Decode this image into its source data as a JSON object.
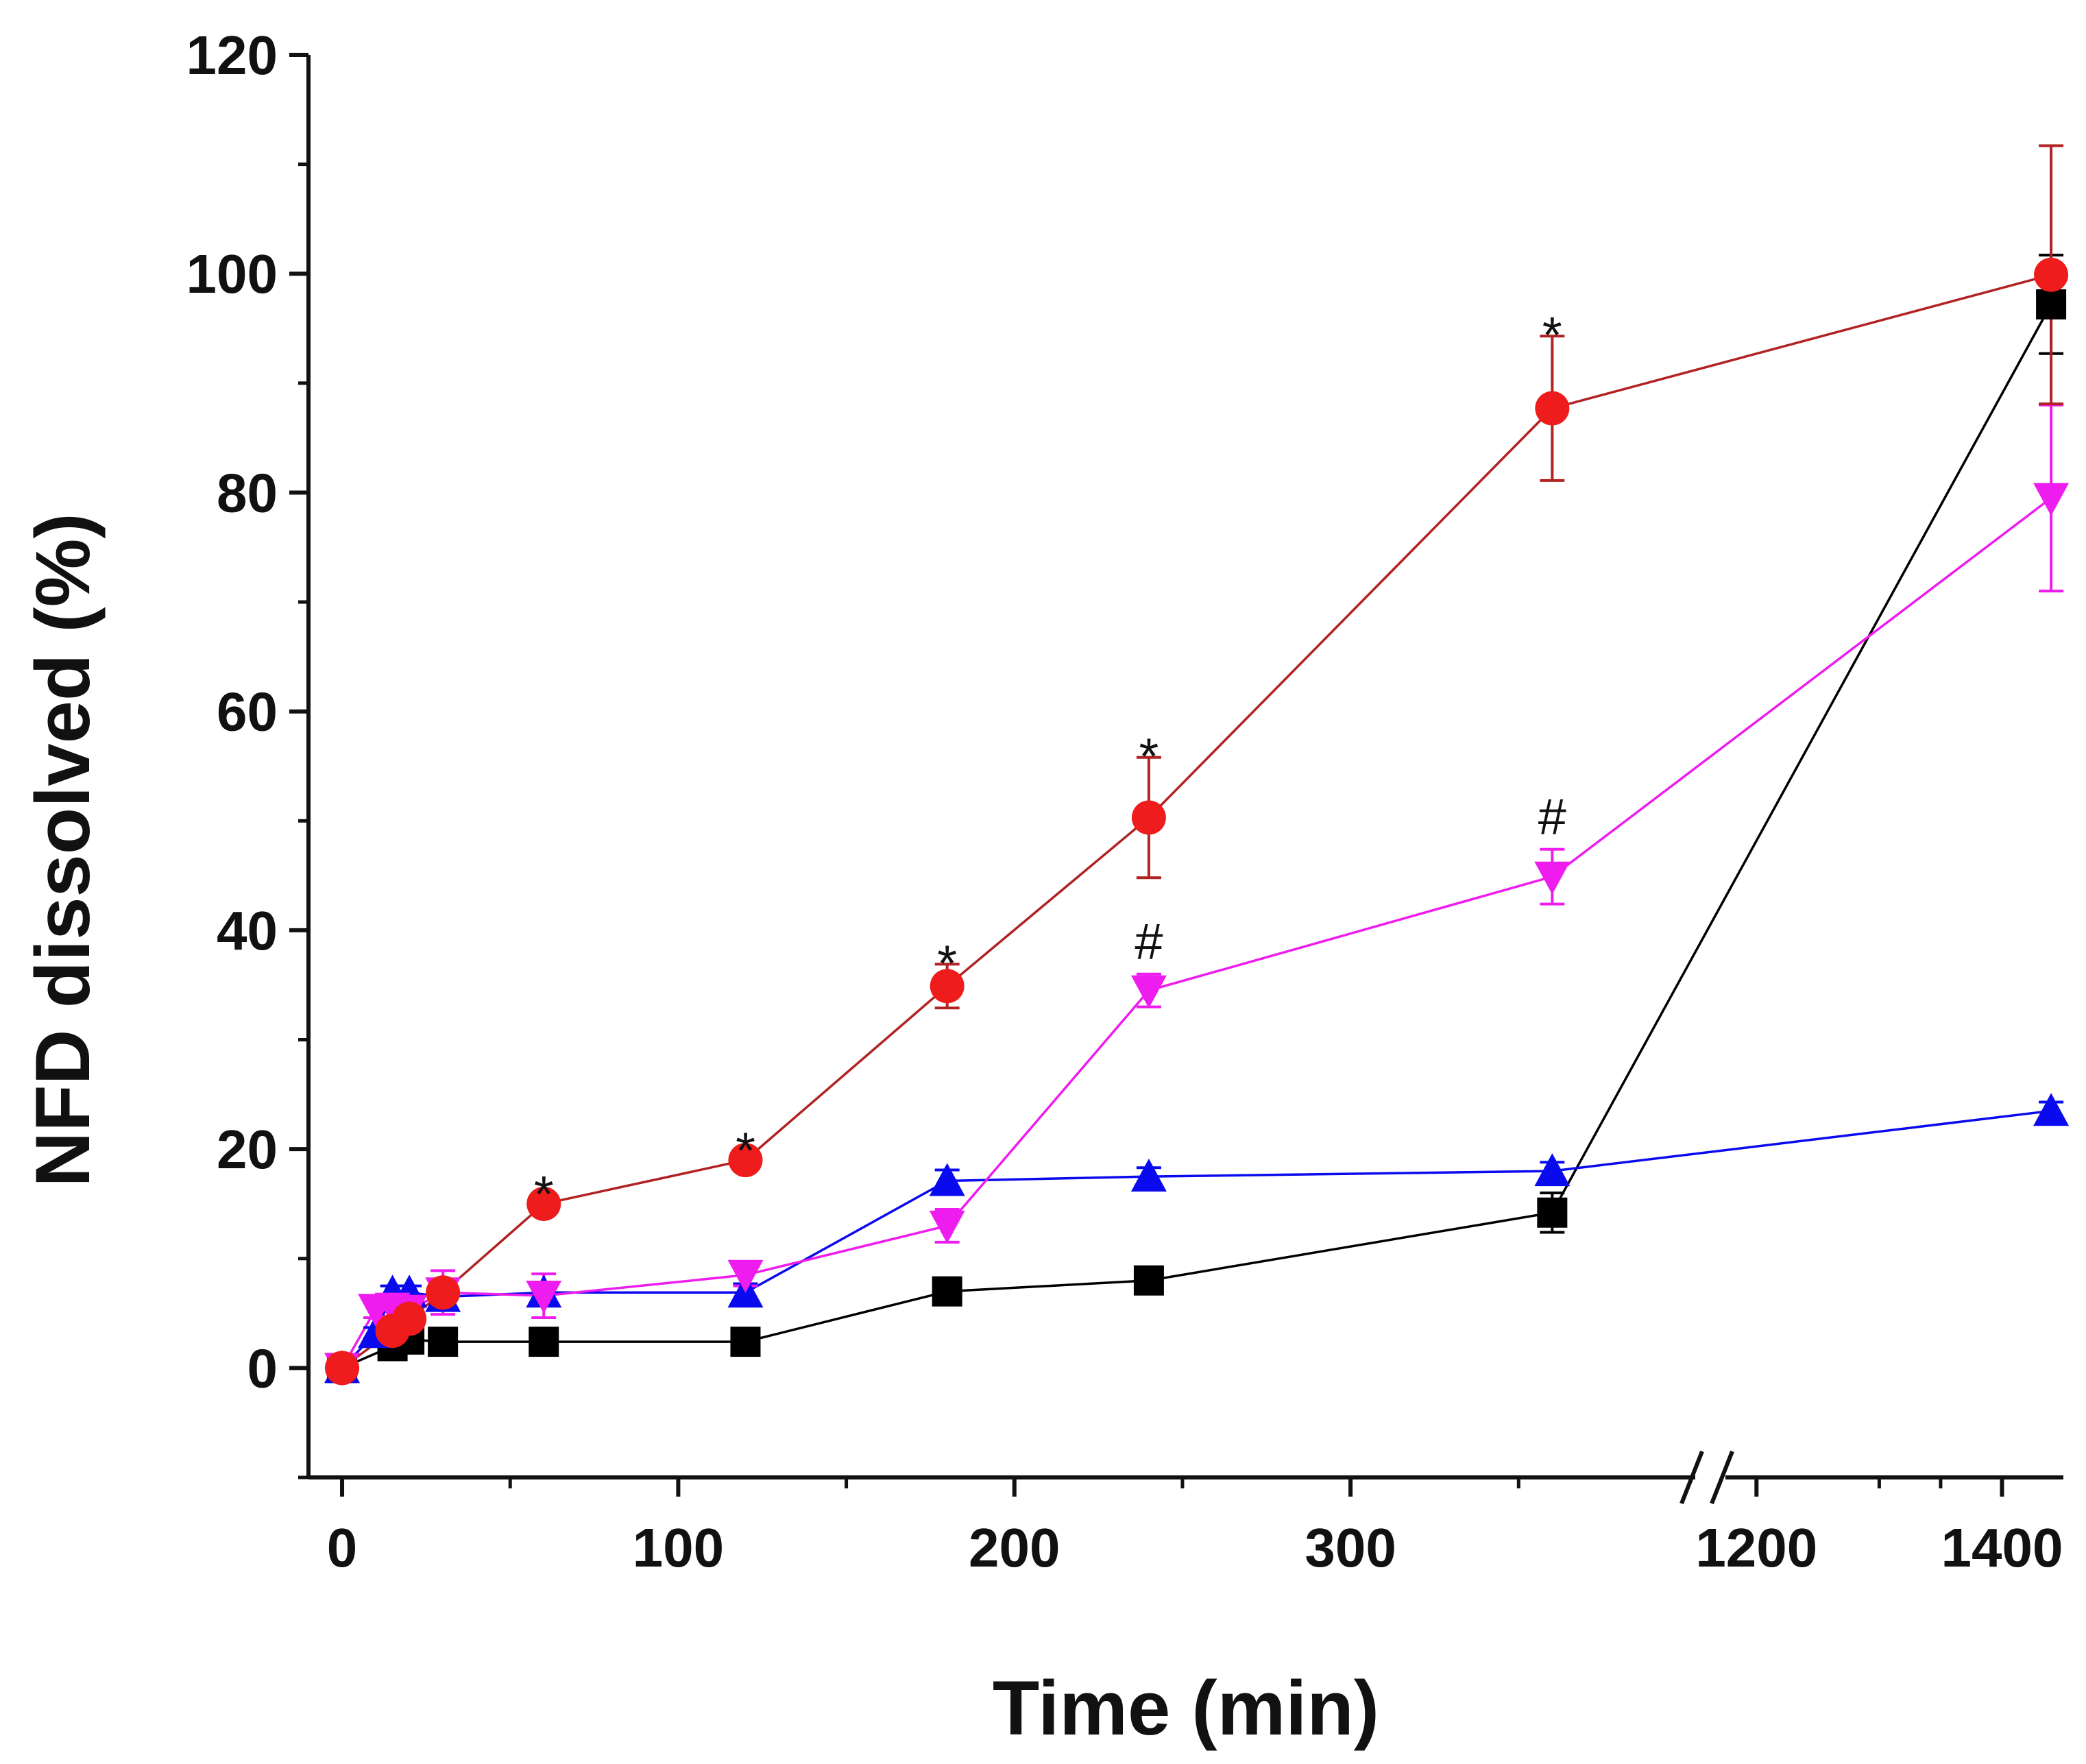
{
  "chart_data": {
    "type": "line",
    "title": "",
    "xlabel": "Time (min)",
    "ylabel": "NFD dissolved (%)",
    "ylim": [
      -10,
      120
    ],
    "yticks": [
      "0",
      "20",
      "40",
      "60",
      "80",
      "100",
      "120"
    ],
    "x_segments": [
      {
        "range": [
          -10,
          405
        ],
        "ticks": [
          "0",
          "100",
          "200",
          "300"
        ]
      },
      {
        "range": [
          1168,
          1450
        ],
        "ticks": [
          "1200",
          "1400"
        ]
      }
    ],
    "axis_break": true,
    "grid": false,
    "series": [
      {
        "name": "black-squares",
        "color": "#000000",
        "marker": "square",
        "x": [
          0,
          15,
          20,
          30,
          60,
          120,
          180,
          240,
          360,
          1440
        ],
        "y": [
          0,
          2,
          2.6,
          2.4,
          2.4,
          2.4,
          7,
          8,
          14.2,
          97.2
        ],
        "err": [
          0.4,
          0.4,
          0.4,
          0.4,
          0.4,
          0.4,
          0.6,
          0.6,
          1.8,
          4.5
        ]
      },
      {
        "name": "red-circles",
        "color": "#ee1c1c",
        "line_color": "#b22222",
        "marker": "circle",
        "x": [
          0,
          15,
          20,
          30,
          60,
          120,
          180,
          240,
          360,
          1440
        ],
        "y": [
          0,
          3.4,
          4.5,
          6.9,
          15,
          19,
          34.9,
          50.3,
          87.7,
          99.9
        ],
        "err": [
          0.4,
          0.6,
          0.6,
          1.2,
          0.8,
          0.8,
          2,
          5.5,
          6.6,
          11.8
        ]
      },
      {
        "name": "blue-triangles",
        "color": "#0a0aee",
        "marker": "triangle-up",
        "x": [
          0,
          10,
          15,
          20,
          30,
          60,
          120,
          180,
          240,
          360,
          1440
        ],
        "y": [
          0,
          3.2,
          6.9,
          6.9,
          6.5,
          6.9,
          6.9,
          17.1,
          17.5,
          18,
          23.5
        ],
        "err": [
          0.4,
          0.5,
          0.6,
          0.6,
          0.6,
          0.8,
          0.8,
          1,
          0.8,
          0.8,
          0.8
        ]
      },
      {
        "name": "magenta-triangles",
        "color": "#ee1cee",
        "marker": "triangle-down",
        "x": [
          0,
          10,
          15,
          20,
          30,
          60,
          120,
          180,
          240,
          360,
          1440
        ],
        "y": [
          0,
          5.4,
          5.5,
          5.3,
          6.9,
          6.6,
          8.5,
          13,
          34.5,
          44.9,
          79.5
        ],
        "err": [
          0.4,
          0.8,
          0.8,
          0.8,
          2,
          2,
          1,
          1.5,
          1.5,
          2.5,
          8.5
        ]
      }
    ],
    "annotations": [
      {
        "text": "*",
        "x": 60,
        "y": 15,
        "series": "red-circles"
      },
      {
        "text": "*",
        "x": 120,
        "y": 19,
        "series": "red-circles"
      },
      {
        "text": "*",
        "x": 180,
        "y": 34.9,
        "series": "red-circles"
      },
      {
        "text": "*",
        "x": 240,
        "y": 50.3,
        "series": "red-circles"
      },
      {
        "text": "*",
        "x": 360,
        "y": 87.7,
        "series": "red-circles"
      },
      {
        "text": "#",
        "x": 240,
        "y": 34.5,
        "series": "magenta-triangles"
      },
      {
        "text": "#",
        "x": 360,
        "y": 44.9,
        "series": "magenta-triangles"
      }
    ]
  }
}
